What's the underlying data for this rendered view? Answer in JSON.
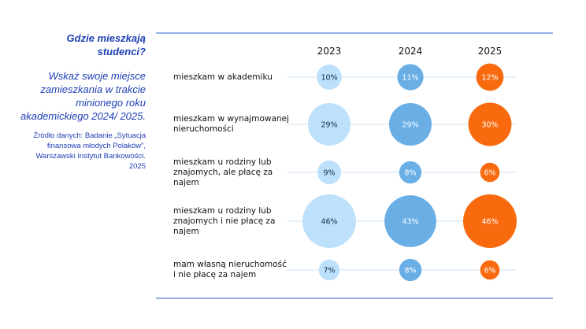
{
  "chart_data": {
    "type": "bubble",
    "title": "Gdzie mieszkają studenci?",
    "subtitle": "Wskaż swoje miejsce zamieszkania w trakcie minionego roku akademickiego 2024/ 2025.",
    "source": [
      "Źródło danych: Badanie „Sytuacja",
      "finansowa młodych Polaków”,",
      "Warszawski Instytut Bankowości.",
      "2025"
    ],
    "years": [
      "2023",
      "2024",
      "2025"
    ],
    "categories": [
      "mieszkam w akademiku",
      "mieszkam w wynajmowanej nieruchomości",
      "mieszkam u rodziny lub znajomych, ale płacę za najem",
      "mieszkam u rodziny lub znajomych i nie płacę za najem",
      "mam własną nieruchomość i nie płacę za najem"
    ],
    "label_lines": [
      [
        "mieszkam w akademiku"
      ],
      [
        "mieszkam w wynajmowanej",
        "nieruchomości"
      ],
      [
        "mieszkam u rodziny lub",
        "znajomych, ale płacę za",
        "najem"
      ],
      [
        "mieszkam u rodziny lub",
        "znajomych i nie płacę za",
        "najem"
      ],
      [
        "mam własną nieruchomość",
        "i nie płacę za najem"
      ]
    ],
    "series": [
      {
        "name": "2023",
        "color": "#bde0fb",
        "text_color": "#1a2a44",
        "values": [
          10,
          29,
          9,
          46,
          7
        ]
      },
      {
        "name": "2024",
        "color": "#6aaee6",
        "text_color": "#ffffff",
        "values": [
          11,
          29,
          8,
          43,
          8
        ]
      },
      {
        "name": "2025",
        "color": "#f96a0f",
        "text_color": "#ffffff",
        "values": [
          12,
          30,
          6,
          46,
          6
        ]
      }
    ],
    "value_suffix": "%",
    "rule_color": "#2d5fcf",
    "connector_color": "#cfe3f5"
  }
}
